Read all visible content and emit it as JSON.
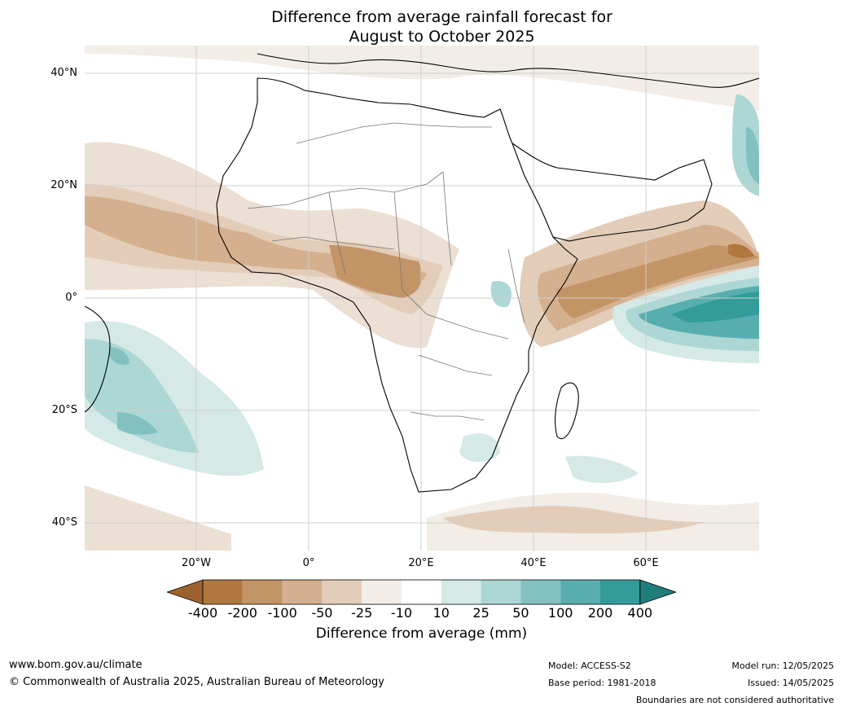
{
  "title_line1": "Difference from average rainfall forecast for",
  "title_line2": "August to October 2025",
  "lat_labels": [
    "40°N",
    "20°N",
    "0°",
    "20°S",
    "40°S"
  ],
  "lon_labels": [
    "20°W",
    "0°",
    "20°E",
    "40°E",
    "60°E"
  ],
  "colorbar": {
    "labels": [
      "-400",
      "-200",
      "-100",
      "-50",
      "-25",
      "-10",
      "10",
      "25",
      "50",
      "100",
      "200",
      "400"
    ],
    "colors": [
      "#9b6230",
      "#b0773f",
      "#c39466",
      "#d4b08e",
      "#e3cdb9",
      "#f2ede7",
      "#ffffff",
      "#d5e9e7",
      "#acd7d5",
      "#82c1c0",
      "#58aeae",
      "#339c9b",
      "#217d7c"
    ],
    "xlabel": "Difference from average (mm)"
  },
  "footer": {
    "website": "www.bom.gov.au/climate",
    "copyright": "© Commonwealth of Australia 2025, Australian Bureau of Meteorology",
    "model": "Model: ACCESS-S2",
    "base_period": "Base period: 1981-2018",
    "model_run": "Model run: 12/05/2025",
    "issued": "Issued: 14/05/2025",
    "boundaries": "Boundaries are not considered authoritative"
  }
}
